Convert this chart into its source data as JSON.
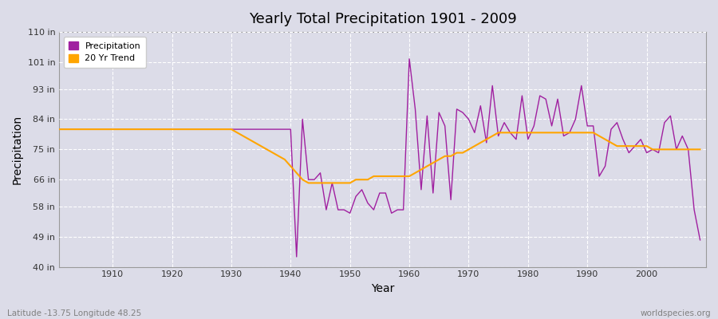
{
  "title": "Yearly Total Precipitation 1901 - 2009",
  "xlabel": "Year",
  "ylabel": "Precipitation",
  "lat_lon_text": "Latitude -13.75 Longitude 48.25",
  "watermark": "worldspecies.org",
  "ylim": [
    40,
    110
  ],
  "yticks": [
    40,
    49,
    58,
    66,
    75,
    84,
    93,
    101,
    110
  ],
  "ytick_labels": [
    "40 in",
    "49 in",
    "58 in",
    "66 in",
    "75 in",
    "84 in",
    "93 in",
    "101 in",
    "110 in"
  ],
  "xticks": [
    1910,
    1920,
    1930,
    1940,
    1950,
    1960,
    1970,
    1980,
    1990,
    2000
  ],
  "xlim": [
    1901,
    2010
  ],
  "precip_color": "#A020A0",
  "trend_color": "#FFA500",
  "bg_color": "#DCDCE8",
  "plot_bg_color": "#DCDCE8",
  "grid_color": "#ffffff",
  "years": [
    1901,
    1902,
    1903,
    1904,
    1905,
    1906,
    1907,
    1908,
    1909,
    1910,
    1911,
    1912,
    1913,
    1914,
    1915,
    1916,
    1917,
    1918,
    1919,
    1920,
    1921,
    1922,
    1923,
    1924,
    1925,
    1926,
    1927,
    1928,
    1929,
    1930,
    1931,
    1932,
    1933,
    1934,
    1935,
    1936,
    1937,
    1938,
    1939,
    1940,
    1941,
    1942,
    1943,
    1944,
    1945,
    1946,
    1947,
    1948,
    1949,
    1950,
    1951,
    1952,
    1953,
    1954,
    1955,
    1956,
    1957,
    1958,
    1959,
    1960,
    1961,
    1962,
    1963,
    1964,
    1965,
    1966,
    1967,
    1968,
    1969,
    1970,
    1971,
    1972,
    1973,
    1974,
    1975,
    1976,
    1977,
    1978,
    1979,
    1980,
    1981,
    1982,
    1983,
    1984,
    1985,
    1986,
    1987,
    1988,
    1989,
    1990,
    1991,
    1992,
    1993,
    1994,
    1995,
    1996,
    1997,
    1998,
    1999,
    2000,
    2001,
    2002,
    2003,
    2004,
    2005,
    2006,
    2007,
    2008,
    2009
  ],
  "precipitation": [
    81,
    81,
    81,
    81,
    81,
    81,
    81,
    81,
    81,
    81,
    81,
    81,
    81,
    81,
    81,
    81,
    81,
    81,
    81,
    81,
    81,
    81,
    81,
    81,
    81,
    81,
    81,
    81,
    81,
    81,
    81,
    81,
    81,
    81,
    81,
    81,
    81,
    81,
    81,
    81,
    43,
    84,
    66,
    66,
    68,
    57,
    65,
    57,
    57,
    56,
    61,
    63,
    59,
    57,
    62,
    62,
    56,
    57,
    57,
    102,
    87,
    63,
    85,
    62,
    86,
    82,
    60,
    87,
    86,
    84,
    80,
    88,
    77,
    94,
    79,
    83,
    80,
    78,
    91,
    78,
    82,
    91,
    90,
    82,
    90,
    79,
    80,
    84,
    94,
    82,
    82,
    67,
    70,
    81,
    83,
    78,
    74,
    76,
    78,
    74,
    75,
    74,
    83,
    85,
    75,
    79,
    75,
    57,
    48
  ],
  "trend": [
    81,
    81,
    81,
    81,
    81,
    81,
    81,
    81,
    81,
    81,
    81,
    81,
    81,
    81,
    81,
    81,
    81,
    81,
    81,
    81,
    81,
    81,
    81,
    81,
    81,
    81,
    81,
    81,
    81,
    81,
    80,
    79,
    78,
    77,
    76,
    75,
    74,
    73,
    72,
    70,
    68,
    66,
    65,
    65,
    65,
    65,
    65,
    65,
    65,
    65,
    66,
    66,
    66,
    67,
    67,
    67,
    67,
    67,
    67,
    67,
    68,
    69,
    70,
    71,
    72,
    73,
    73,
    74,
    74,
    75,
    76,
    77,
    78,
    79,
    80,
    80,
    80,
    80,
    80,
    80,
    80,
    80,
    80,
    80,
    80,
    80,
    80,
    80,
    80,
    80,
    80,
    79,
    78,
    77,
    76,
    76,
    76,
    76,
    76,
    76,
    75,
    75,
    75,
    75,
    75,
    75,
    75,
    75,
    75
  ]
}
